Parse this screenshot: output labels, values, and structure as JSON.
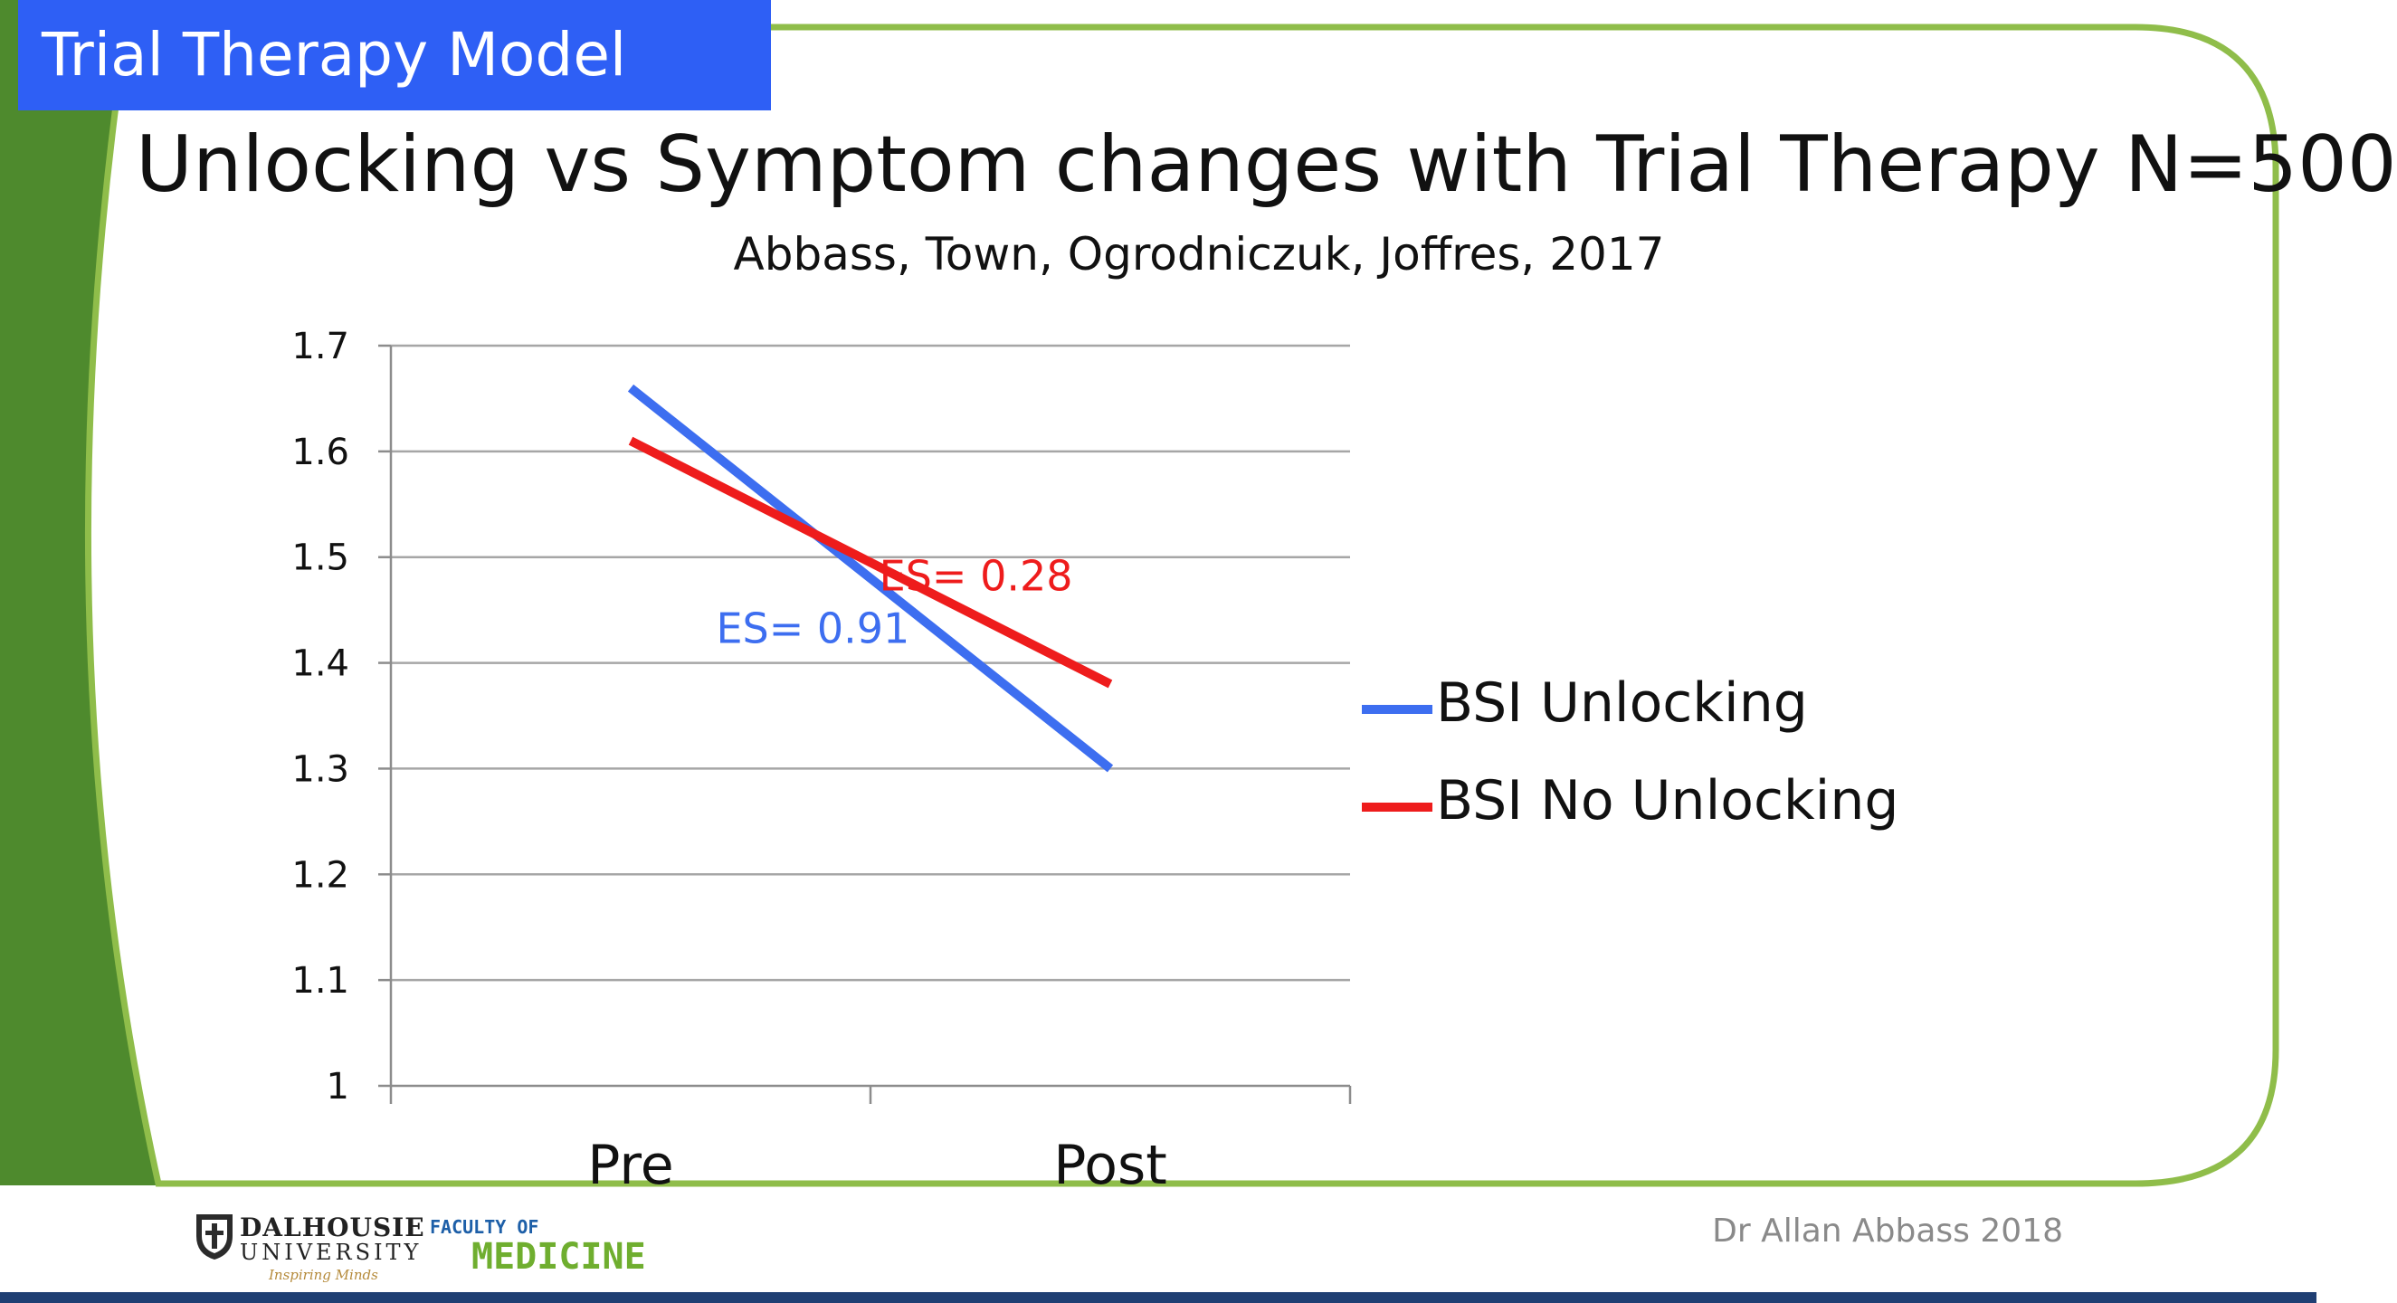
{
  "slide": {
    "badge": "Trial Therapy Model",
    "title": "Unlocking vs Symptom changes with Trial Therapy N=500",
    "subtitle": "Abbass, Town, Ogrodniczuk, Joffres, 2017",
    "author": "Dr Allan Abbass 2018",
    "logos": {
      "university_line1": "DALHOUSIE",
      "university_line2": "UNIVERSITY",
      "university_tagline": "Inspiring Minds",
      "faculty_line1": "FACULTY OF",
      "faculty_line2": "MEDICINE"
    },
    "colors": {
      "badge": "#2e5ff5",
      "frame": "#8fbd4a",
      "sidebar": "#4e8a2d",
      "bottom_bar": "#1f3f73"
    }
  },
  "chart_data": {
    "type": "line",
    "title": "",
    "xlabel": "",
    "ylabel": "",
    "categories": [
      "Pre",
      "Post"
    ],
    "ylim": [
      1,
      1.7
    ],
    "yticks": [
      "1",
      "1.1",
      "1.2",
      "1.3",
      "1.4",
      "1.5",
      "1.6",
      "1.7"
    ],
    "grid": true,
    "legend_position": "right",
    "series": [
      {
        "name": "BSI Unlocking",
        "values": [
          1.66,
          1.3
        ],
        "color": "#3d6ef0"
      },
      {
        "name": "BSI No Unlocking",
        "values": [
          1.61,
          1.38
        ],
        "color": "#ee1c1c"
      }
    ],
    "annotations": [
      {
        "text": "ES= 0.28",
        "color": "#ee1c1c",
        "series": 1
      },
      {
        "text": "ES= 0.91",
        "color": "#3d6ef0",
        "series": 0
      }
    ]
  }
}
